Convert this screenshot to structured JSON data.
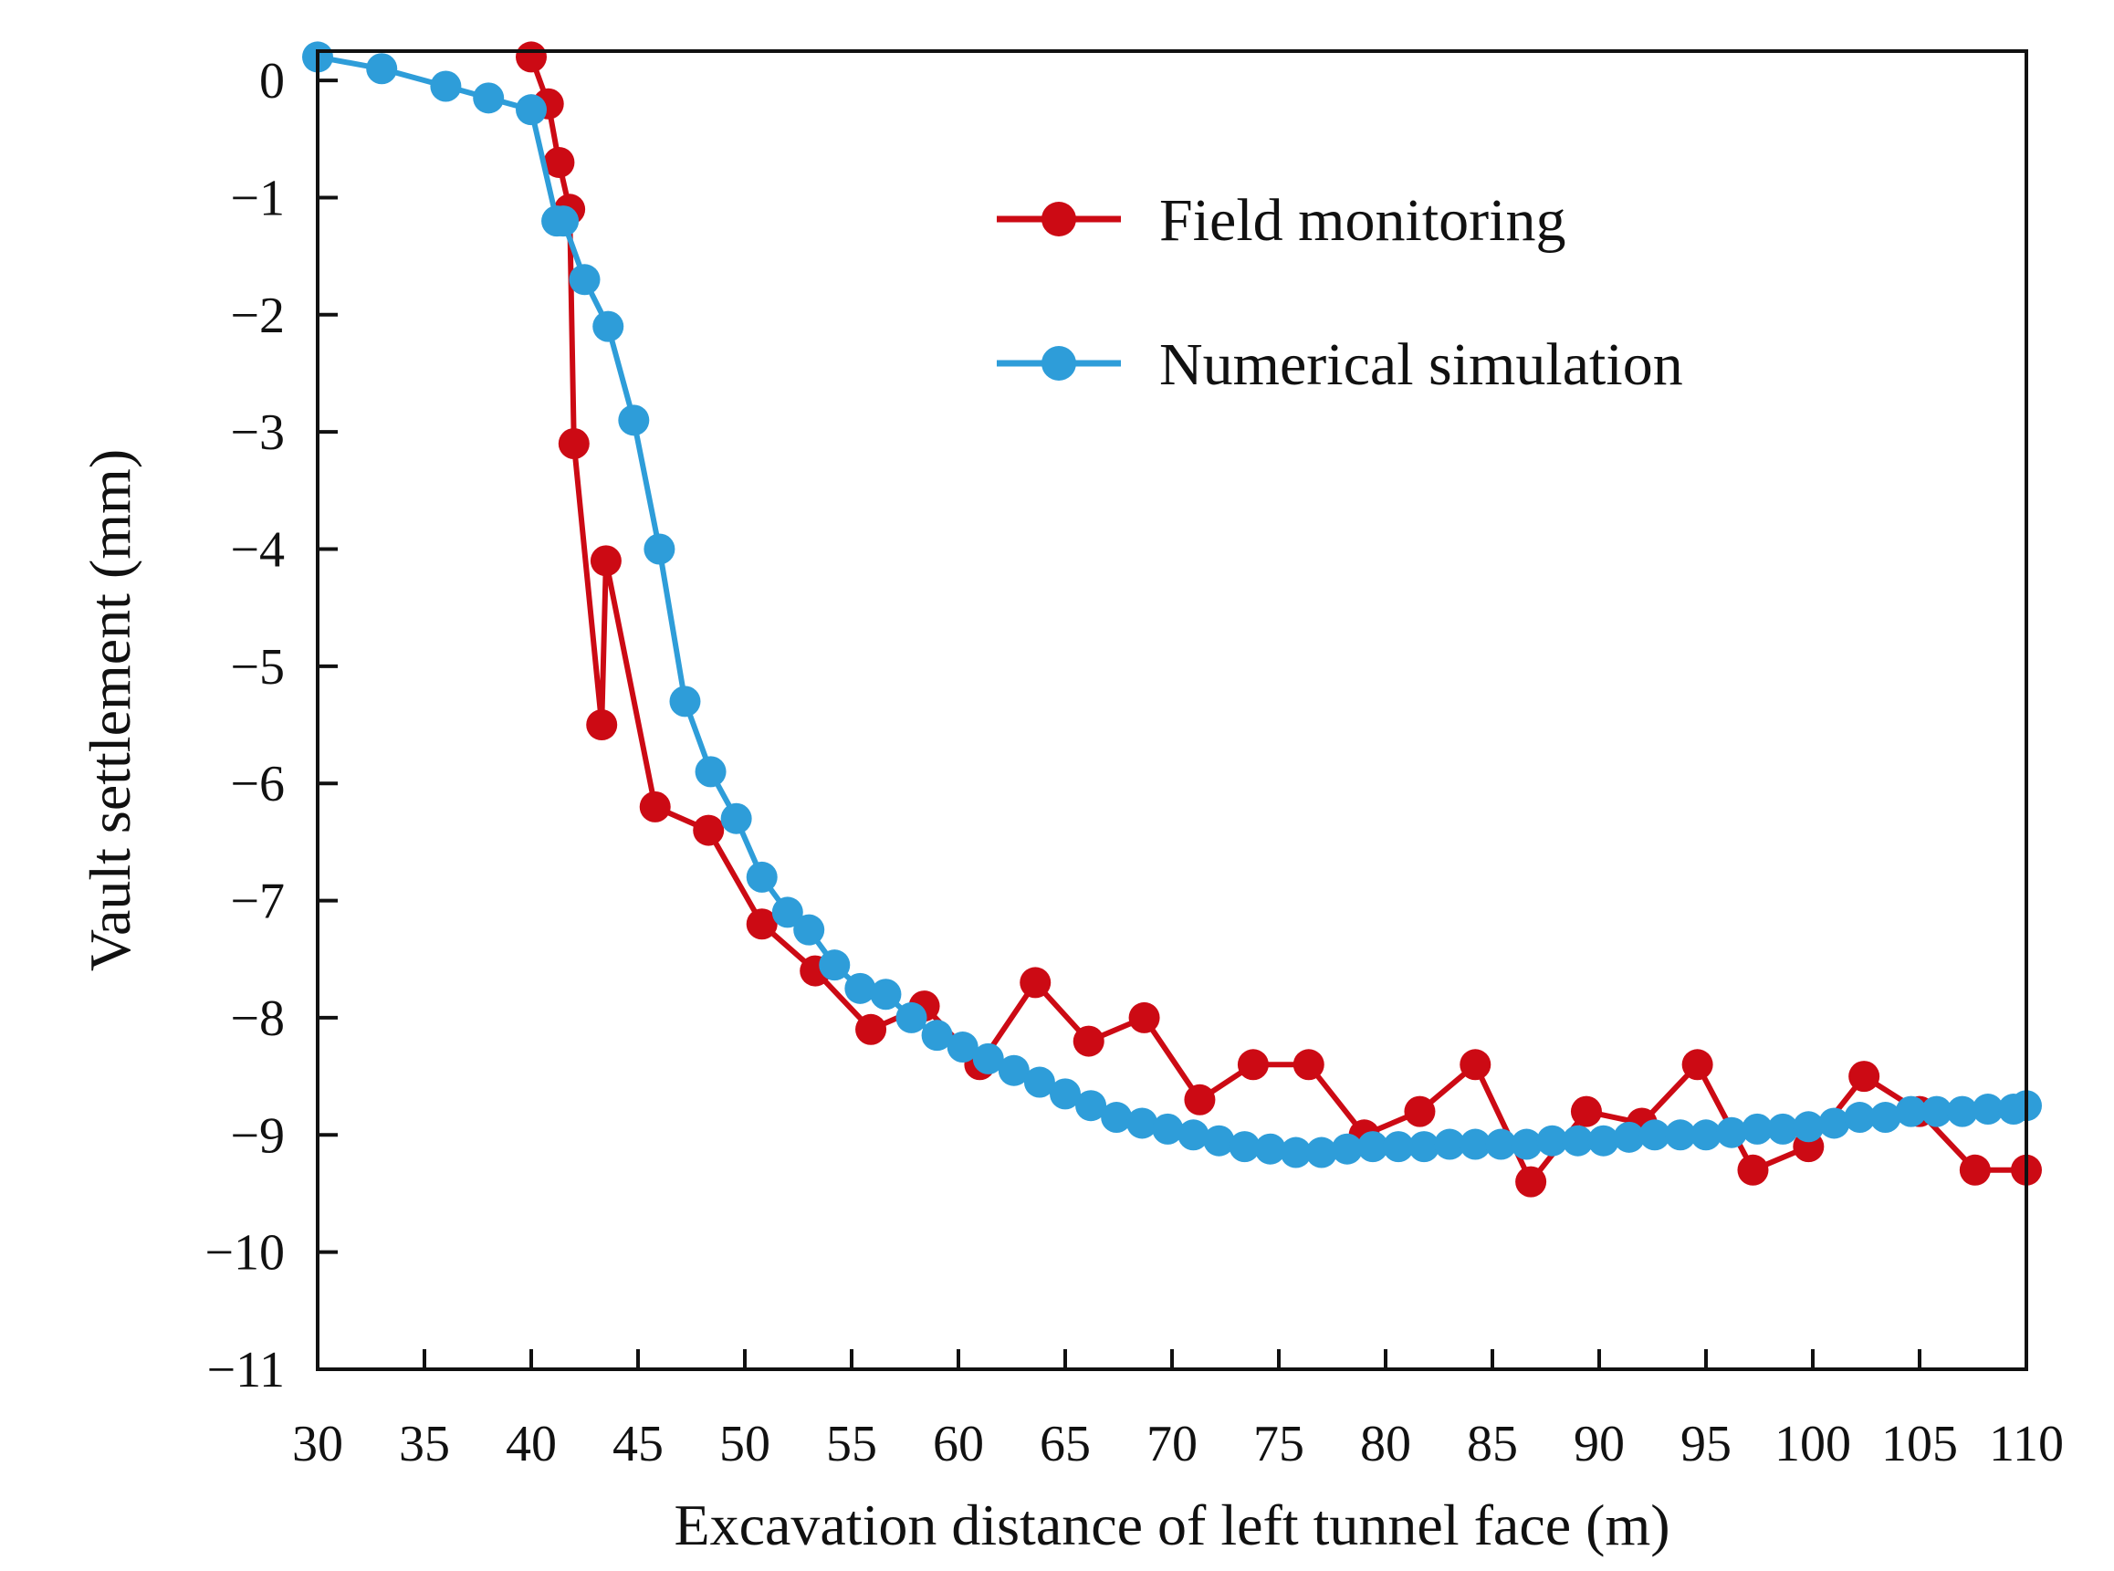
{
  "chart_data": {
    "type": "line",
    "title": "",
    "xlabel": "Excavation distance of left tunnel face (m)",
    "ylabel": "Vault settlement (mm)",
    "xlim": [
      30,
      110
    ],
    "ylim": [
      -11,
      0.25
    ],
    "x_ticks": [
      30,
      35,
      40,
      45,
      50,
      55,
      60,
      65,
      70,
      75,
      80,
      85,
      90,
      95,
      100,
      105,
      110
    ],
    "x_tick_labels": [
      "30",
      "35",
      "40",
      "45",
      "50",
      "55",
      "60",
      "65",
      "70",
      "75",
      "80",
      "85",
      "90",
      "95",
      "100",
      "105",
      "110"
    ],
    "y_ticks": [
      0,
      -1,
      -2,
      -3,
      -4,
      -5,
      -6,
      -7,
      -8,
      -9,
      -10,
      -11
    ],
    "y_tick_labels": [
      "0",
      "−1",
      "−2",
      "−3",
      "−4",
      "−5",
      "−6",
      "−7",
      "−8",
      "−9",
      "−10",
      "−11"
    ],
    "grid": false,
    "legend_position": "top-right",
    "series": [
      {
        "name": "Field monitoring",
        "color": "#cc0a14",
        "x": [
          40,
          40.8,
          41.3,
          41.8,
          42,
          43.3,
          43.5,
          45.8,
          48.3,
          50.8,
          53.3,
          55.9,
          58.4,
          61,
          63.6,
          66.1,
          68.7,
          71.3,
          73.8,
          76.4,
          79,
          81.6,
          84.2,
          86.8,
          89.4,
          92,
          94.6,
          97.2,
          99.8,
          102.4,
          105,
          107.6,
          110
        ],
        "y": [
          0.2,
          -0.2,
          -0.7,
          -1.1,
          -3.1,
          -5.5,
          -4.1,
          -6.2,
          -6.4,
          -7.2,
          -7.6,
          -8.1,
          -7.9,
          -8.4,
          -7.7,
          -8.2,
          -8.0,
          -8.7,
          -8.4,
          -8.4,
          -9.0,
          -8.8,
          -8.4,
          -9.4,
          -8.8,
          -8.9,
          -8.4,
          -9.3,
          -9.1,
          -8.5,
          -8.8,
          -9.3,
          -9.3
        ]
      },
      {
        "name": "Numerical simulation",
        "color": "#2e9dd9",
        "x": [
          30,
          33,
          36,
          38,
          40,
          41.2,
          41.5,
          42.5,
          43.6,
          44.8,
          46,
          47.2,
          48.4,
          49.6,
          50.8,
          52,
          53,
          54.2,
          55.4,
          56.6,
          57.8,
          59,
          60.2,
          61.4,
          62.6,
          63.8,
          65,
          66.2,
          67.4,
          68.6,
          69.8,
          71,
          72.2,
          73.4,
          74.6,
          75.8,
          77,
          78.2,
          79.4,
          80.6,
          81.8,
          83,
          84.2,
          85.4,
          86.6,
          87.8,
          89,
          90.2,
          91.4,
          92.6,
          93.8,
          95,
          96.2,
          97.4,
          98.6,
          99.8,
          101,
          102.2,
          103.4,
          104.6,
          105.8,
          107,
          108.2,
          109.4,
          110
        ],
        "y": [
          0.2,
          0.1,
          -0.05,
          -0.15,
          -0.25,
          -1.2,
          -1.2,
          -1.7,
          -2.1,
          -2.9,
          -4.0,
          -5.3,
          -5.9,
          -6.3,
          -6.8,
          -7.1,
          -7.25,
          -7.55,
          -7.75,
          -7.8,
          -8.0,
          -8.15,
          -8.25,
          -8.35,
          -8.45,
          -8.55,
          -8.65,
          -8.75,
          -8.85,
          -8.9,
          -8.95,
          -9.0,
          -9.05,
          -9.1,
          -9.12,
          -9.15,
          -9.15,
          -9.12,
          -9.1,
          -9.1,
          -9.1,
          -9.08,
          -9.08,
          -9.08,
          -9.08,
          -9.05,
          -9.05,
          -9.05,
          -9.02,
          -9.0,
          -9.0,
          -9.0,
          -8.98,
          -8.95,
          -8.95,
          -8.93,
          -8.9,
          -8.85,
          -8.85,
          -8.8,
          -8.8,
          -8.8,
          -8.78,
          -8.78,
          -8.75
        ]
      }
    ]
  }
}
